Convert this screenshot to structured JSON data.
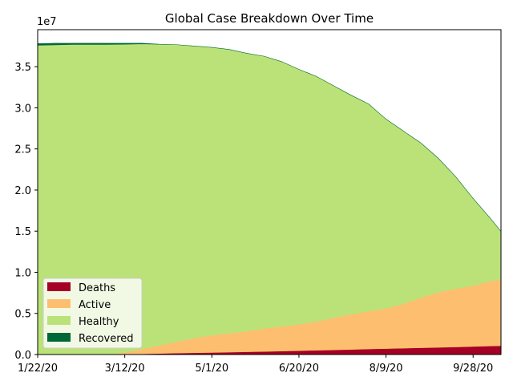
{
  "chart_data": {
    "type": "area",
    "stacked": true,
    "title": "Global Case Breakdown Over Time",
    "xlabel": "",
    "ylabel": "",
    "y_offset_label": "1e7",
    "x_tick_labels": [
      "1/22/20",
      "3/12/20",
      "5/1/20",
      "6/20/20",
      "8/9/20",
      "9/28/20"
    ],
    "x_days": [
      0,
      10,
      20,
      30,
      40,
      50,
      60,
      70,
      80,
      90,
      100,
      110,
      120,
      130,
      140,
      150,
      160,
      170,
      180,
      190,
      200,
      210,
      220,
      230,
      240,
      250,
      260,
      266
    ],
    "xlim": [
      0,
      266
    ],
    "y_ticks": [
      0.0,
      0.5,
      1.0,
      1.5,
      2.0,
      2.5,
      3.0,
      3.5
    ],
    "ylim": [
      0,
      3.95
    ],
    "grid": false,
    "legend_position": "lower-left",
    "series": [
      {
        "name": "Deaths",
        "color": "#a50026",
        "values": [
          0,
          0,
          0,
          0,
          0,
          0.003,
          0.008,
          0.013,
          0.017,
          0.021,
          0.025,
          0.029,
          0.033,
          0.037,
          0.042,
          0.047,
          0.052,
          0.057,
          0.062,
          0.067,
          0.072,
          0.077,
          0.082,
          0.087,
          0.092,
          0.098,
          0.104,
          0.107
        ]
      },
      {
        "name": "Active",
        "color": "#fdbf6f",
        "values": [
          0,
          0,
          0,
          0,
          0,
          0.02,
          0.06,
          0.1,
          0.14,
          0.18,
          0.21,
          0.23,
          0.25,
          0.28,
          0.3,
          0.32,
          0.35,
          0.39,
          0.43,
          0.46,
          0.49,
          0.54,
          0.61,
          0.67,
          0.71,
          0.74,
          0.79,
          0.81
        ]
      },
      {
        "name": "Healthy",
        "color": "#bbe278",
        "values": [
          3.76,
          3.765,
          3.77,
          3.77,
          3.77,
          3.75,
          3.71,
          3.66,
          3.61,
          3.55,
          3.5,
          3.45,
          3.38,
          3.31,
          3.22,
          3.1,
          2.98,
          2.82,
          2.66,
          2.52,
          2.3,
          2.1,
          1.88,
          1.63,
          1.36,
          1.06,
          0.76,
          0.58
        ]
      },
      {
        "name": "Recovered",
        "color": "#006837",
        "values": [
          0.02,
          0.02,
          0.015,
          0.015,
          0.015,
          0.012,
          0.007,
          0.0,
          0.0,
          0.0,
          0.0,
          0.0,
          0.0,
          0.0,
          0.0,
          0.0,
          0.0,
          0.0,
          0.0,
          0.0,
          0.0,
          0.0,
          0.0,
          0.0,
          0.0,
          0.0,
          0.0,
          0.0
        ]
      }
    ]
  }
}
